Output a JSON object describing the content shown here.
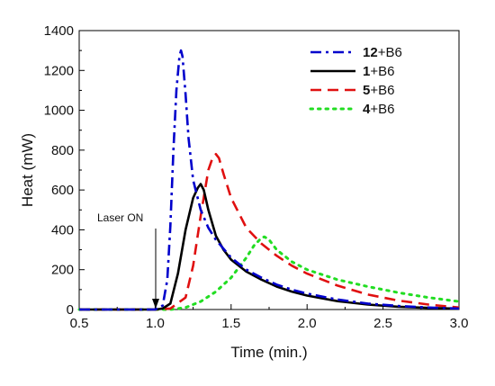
{
  "chart_data": {
    "type": "line",
    "xlabel": "Time (min.)",
    "ylabel": "Heat (mW)",
    "xlim": [
      0.5,
      3.0
    ],
    "ylim": [
      0,
      1400
    ],
    "x_ticks": [
      0.5,
      1.0,
      1.5,
      2.0,
      2.5,
      3.0
    ],
    "x_tick_labels": [
      "0.5",
      "1.0",
      "1.5",
      "2.0",
      "2.5",
      "3.0"
    ],
    "y_ticks": [
      0,
      200,
      400,
      600,
      800,
      1000,
      1200,
      1400
    ],
    "y_tick_labels": [
      "0",
      "200",
      "400",
      "600",
      "800",
      "1000",
      "1200",
      "1400"
    ],
    "grid": false,
    "legend_position": "top-right",
    "annotations": [
      {
        "text": "Laser ON",
        "x": 1.0,
        "y": 0
      }
    ],
    "series": [
      {
        "name": "12+B6",
        "bold_part": "12",
        "rest_part": "+B6",
        "color": "#0000cc",
        "style": "dash-dot",
        "x": [
          0.5,
          1.0,
          1.05,
          1.08,
          1.1,
          1.12,
          1.14,
          1.16,
          1.17,
          1.18,
          1.2,
          1.22,
          1.25,
          1.3,
          1.35,
          1.4,
          1.5,
          1.6,
          1.7,
          1.8,
          1.9,
          2.0,
          2.2,
          2.4,
          2.6,
          2.8,
          3.0
        ],
        "values": [
          0,
          0,
          20,
          150,
          420,
          800,
          1100,
          1270,
          1300,
          1270,
          1080,
          860,
          650,
          500,
          410,
          350,
          260,
          200,
          160,
          125,
          100,
          80,
          50,
          30,
          18,
          10,
          5
        ]
      },
      {
        "name": "1+B6",
        "bold_part": "1",
        "rest_part": "+B6",
        "color": "#000000",
        "style": "solid",
        "x": [
          0.5,
          1.0,
          1.05,
          1.1,
          1.15,
          1.2,
          1.25,
          1.28,
          1.3,
          1.32,
          1.35,
          1.4,
          1.45,
          1.5,
          1.6,
          1.7,
          1.8,
          1.9,
          2.0,
          2.2,
          2.4,
          2.6,
          2.8,
          3.0
        ],
        "values": [
          0,
          0,
          5,
          30,
          180,
          400,
          560,
          610,
          630,
          600,
          500,
          370,
          300,
          250,
          190,
          150,
          115,
          90,
          70,
          42,
          25,
          14,
          8,
          4
        ]
      },
      {
        "name": "5+B6",
        "bold_part": "5",
        "rest_part": "+B6",
        "color": "#e01010",
        "style": "dashed",
        "x": [
          0.5,
          1.0,
          1.1,
          1.2,
          1.25,
          1.3,
          1.35,
          1.38,
          1.4,
          1.42,
          1.45,
          1.5,
          1.6,
          1.7,
          1.8,
          1.9,
          2.0,
          2.2,
          2.4,
          2.6,
          2.8,
          3.0
        ],
        "values": [
          0,
          0,
          5,
          60,
          220,
          470,
          700,
          765,
          780,
          760,
          680,
          560,
          410,
          330,
          270,
          220,
          180,
          120,
          75,
          45,
          25,
          10
        ]
      },
      {
        "name": "4+B6",
        "bold_part": "4",
        "rest_part": "+B6",
        "color": "#22dd22",
        "style": "dotted",
        "x": [
          0.5,
          1.0,
          1.1,
          1.2,
          1.3,
          1.4,
          1.5,
          1.6,
          1.65,
          1.7,
          1.72,
          1.75,
          1.8,
          1.9,
          2.0,
          2.2,
          2.4,
          2.6,
          2.8,
          3.0
        ],
        "values": [
          0,
          0,
          0,
          10,
          40,
          90,
          160,
          260,
          320,
          360,
          365,
          350,
          300,
          240,
          200,
          150,
          115,
          85,
          60,
          40
        ]
      }
    ]
  }
}
